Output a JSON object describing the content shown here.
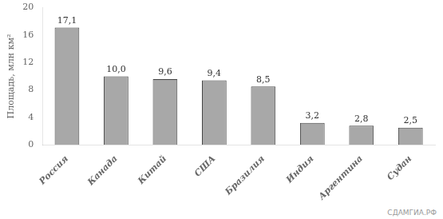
{
  "chart_data": {
    "type": "bar",
    "categories": [
      "Россия",
      "Канада",
      "Китай",
      "США",
      "Бразилия",
      "Индия",
      "Аргентина",
      "Судан"
    ],
    "values": [
      17.1,
      10.0,
      9.6,
      9.4,
      8.5,
      3.2,
      2.8,
      2.5
    ],
    "value_labels": [
      "17,1",
      "10,0",
      "9,6",
      "9,4",
      "8,5",
      "3,2",
      "2,8",
      "2,5"
    ],
    "data_labels": true,
    "color": "#a8a8a8",
    "ylabel": "Площадь, млн км²",
    "ylim": [
      0,
      20
    ],
    "yticks": [
      0,
      4,
      8,
      12,
      16,
      20
    ],
    "grid": false,
    "annotations": [
      "СДАМГИА.РФ"
    ]
  }
}
